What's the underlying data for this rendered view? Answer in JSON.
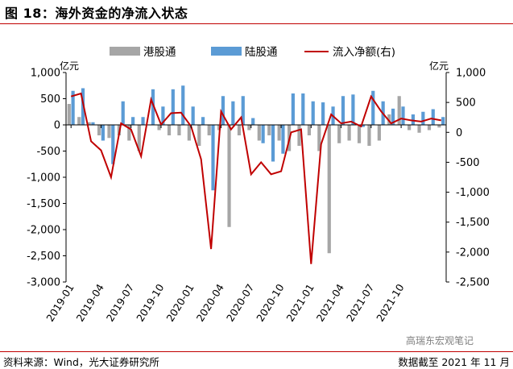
{
  "figure": {
    "title": "图 18：海外资金的净流入状态",
    "source": "资料来源：Wind，光大证券研究所",
    "cutoff": "数据截至 2021 年 11 月",
    "watermark": "高瑞东宏观笔记"
  },
  "chart_data": {
    "type": "bar",
    "left_axis": {
      "unit": "亿元",
      "min": -3000,
      "max": 1000,
      "ticks": [
        1000,
        500,
        0,
        -500,
        -1000,
        -1500,
        -2000,
        -2500,
        -3000
      ],
      "tick_labels": [
        "1,000",
        "500",
        "0",
        "-500",
        "-1,000",
        "-1,500",
        "-2,000",
        "-2,500",
        "-3,000"
      ]
    },
    "right_axis": {
      "unit": "亿元",
      "min": -2500,
      "max": 1000,
      "ticks": [
        1000,
        500,
        0,
        -500,
        -1000,
        -1500,
        -2000,
        -2500
      ],
      "tick_labels": [
        "1,000",
        "500",
        "0",
        "-500",
        "-1,000",
        "-1,500",
        "-2,000",
        "-2,500"
      ]
    },
    "x_tick_labels": [
      "2019-01",
      "2019-04",
      "2019-07",
      "2019-10",
      "2020-01",
      "2020-04",
      "2020-07",
      "2020-10",
      "2021-01",
      "2021-04",
      "2021-07",
      "2021-10"
    ],
    "legend": {
      "placement": "top",
      "entries": [
        "港股通",
        "陆股通",
        "流入净额(右)"
      ]
    },
    "series": [
      {
        "name": "港股通",
        "color": "#a6a6a6",
        "axis": "left",
        "values": [
          400,
          150,
          50,
          -200,
          -250,
          -200,
          -300,
          -500,
          0,
          -100,
          -200,
          -200,
          -300,
          -400,
          -200,
          -100,
          -1950,
          -200,
          -100,
          -300,
          -200,
          -300,
          -500,
          -400,
          -200,
          -500,
          -2450,
          -350,
          -300,
          -350,
          -400,
          -300,
          200,
          550,
          -100,
          -150,
          -100,
          -50
        ]
      },
      {
        "name": "陆股通",
        "color": "#5b9bd5",
        "axis": "left",
        "values": [
          650,
          700,
          50,
          -300,
          -750,
          450,
          150,
          150,
          680,
          350,
          680,
          750,
          350,
          150,
          -1250,
          550,
          450,
          550,
          130,
          -350,
          -700,
          -550,
          600,
          600,
          450,
          430,
          350,
          550,
          580,
          -40,
          650,
          450,
          310,
          350,
          200,
          250,
          300,
          150
        ]
      },
      {
        "name": "流入净额(右)",
        "color": "#c00000",
        "axis": "right",
        "values": [
          600,
          650,
          -150,
          -300,
          -750,
          150,
          50,
          -400,
          550,
          130,
          320,
          330,
          100,
          -450,
          -1950,
          350,
          50,
          250,
          -700,
          -500,
          -700,
          -650,
          0,
          50,
          -2200,
          -200,
          300,
          150,
          180,
          100,
          600,
          350,
          150,
          230,
          200,
          180,
          230,
          200
        ]
      }
    ],
    "grid": false
  }
}
